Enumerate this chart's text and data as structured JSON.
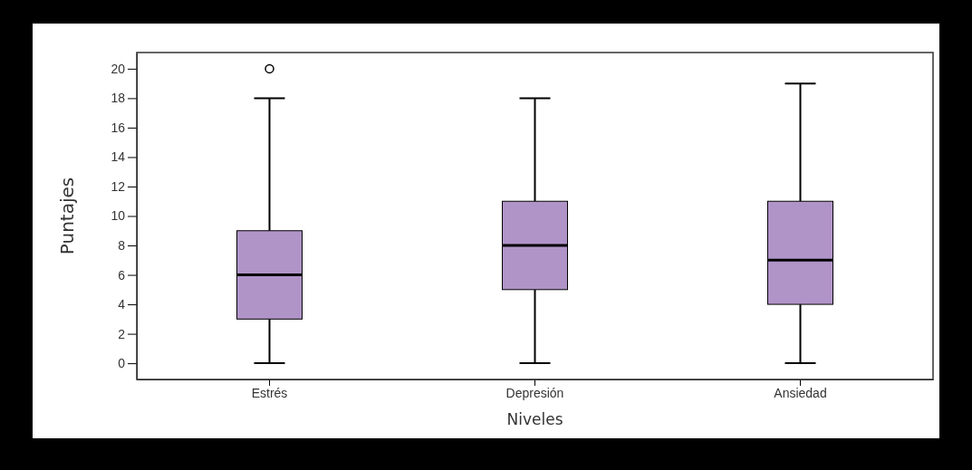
{
  "chart_data": {
    "type": "box",
    "xlabel": "Niveles",
    "ylabel": "Puntajes",
    "categories": [
      "Estrés",
      "Depresión",
      "Ansiedad"
    ],
    "boxes": [
      {
        "low": 0,
        "q1": 3,
        "median": 6,
        "q3": 9,
        "high": 18,
        "outliers": [
          20
        ]
      },
      {
        "low": 0,
        "q1": 5,
        "median": 8,
        "q3": 11,
        "high": 18
      },
      {
        "low": 0,
        "q1": 4,
        "median": 7,
        "q3": 11,
        "high": 19
      }
    ],
    "color": "#b094c8",
    "ylim": [
      -1.1,
      21.1
    ],
    "yticks": [
      0,
      2,
      4,
      6,
      8,
      10,
      12,
      14,
      16,
      18,
      20
    ],
    "grid": false,
    "legend": false
  }
}
